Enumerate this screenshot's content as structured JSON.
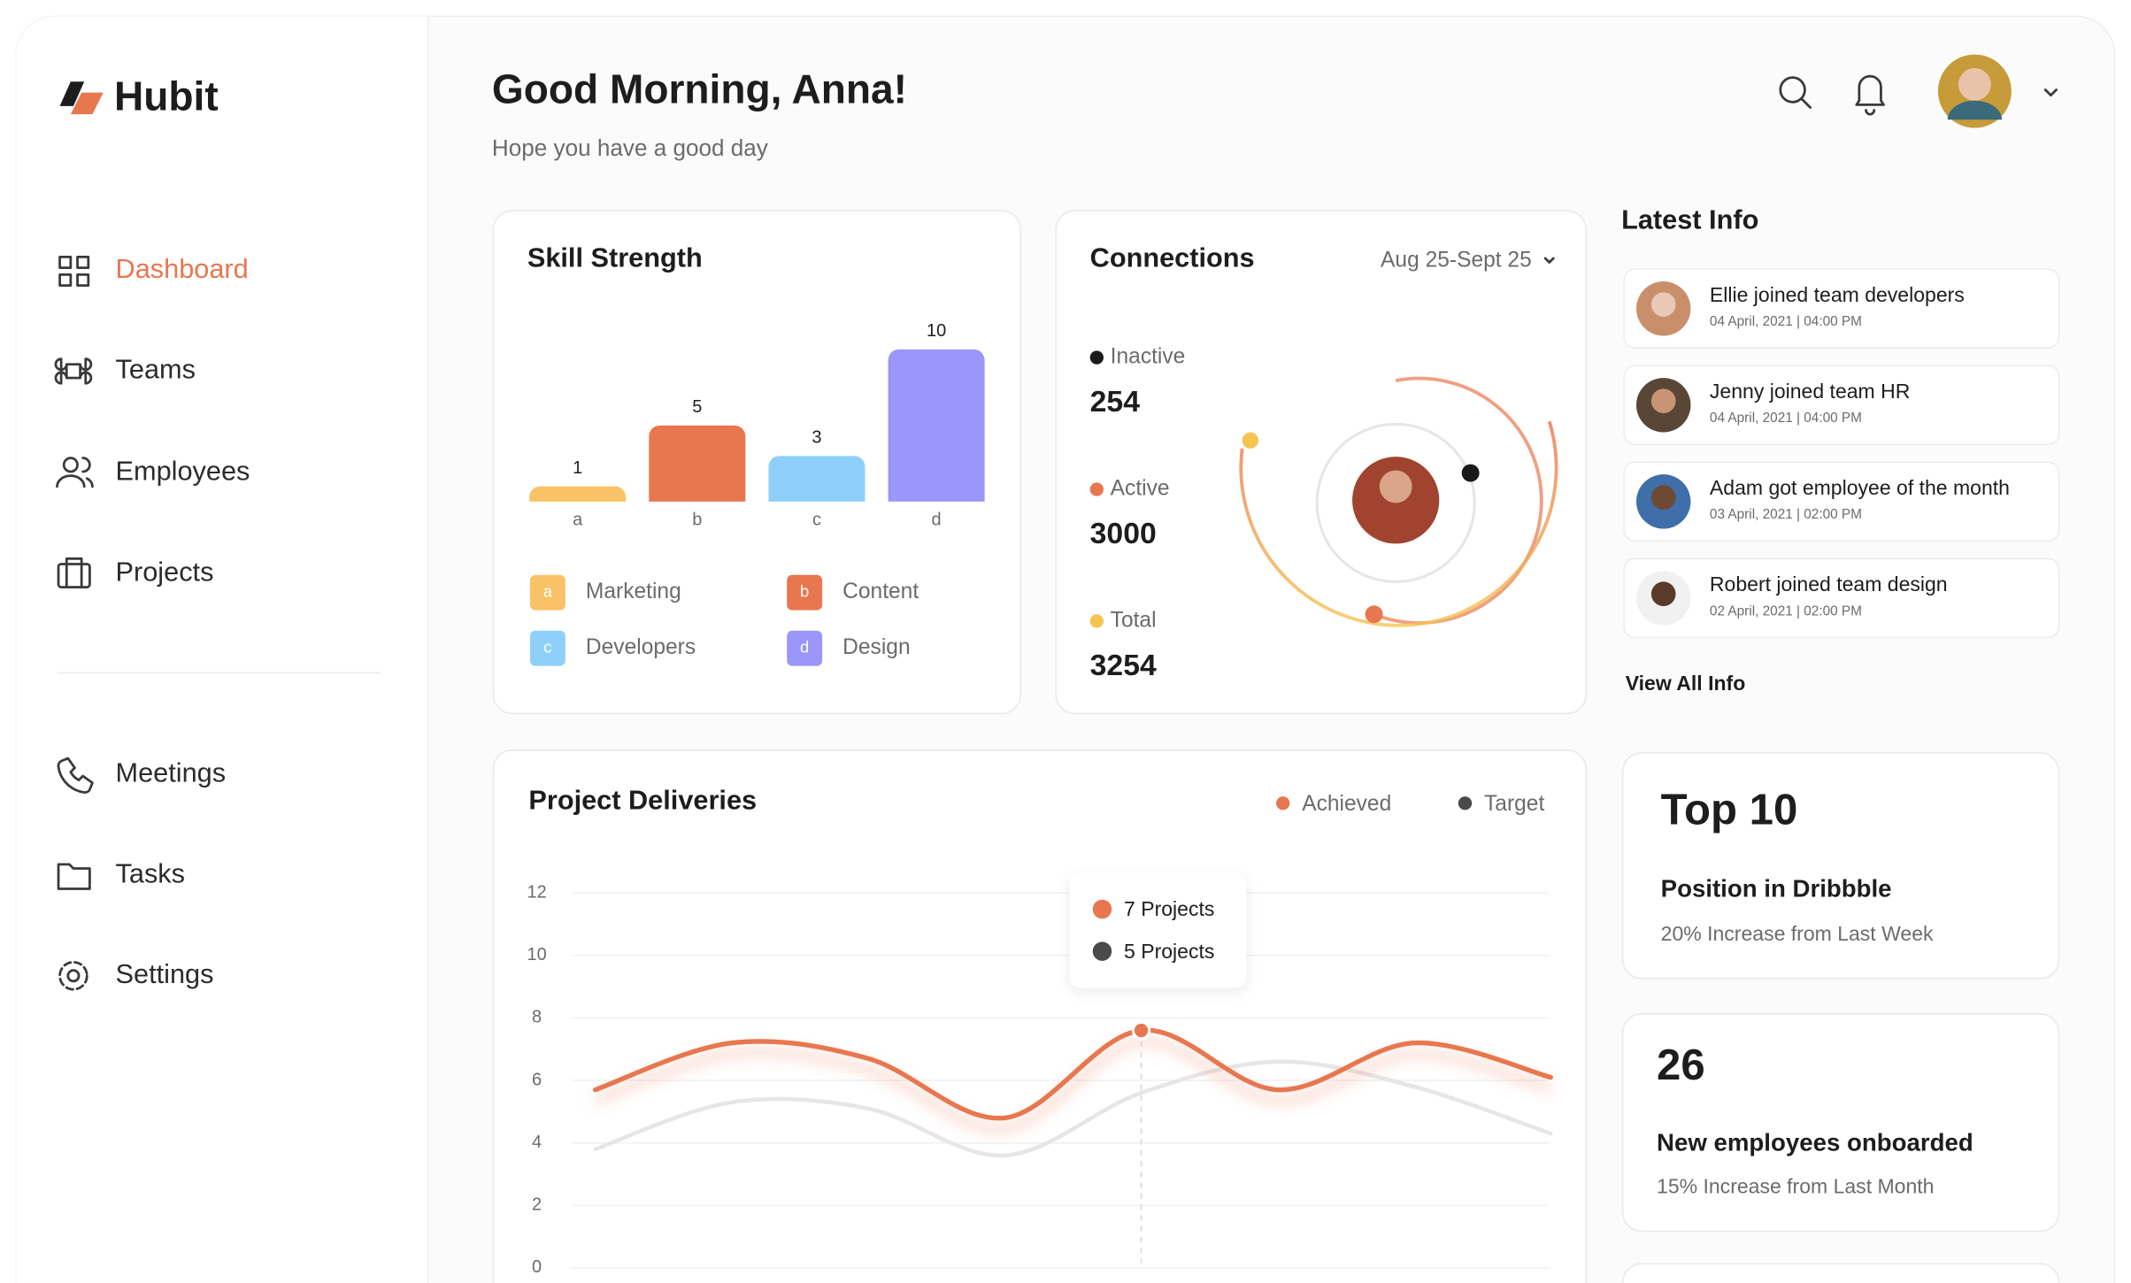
{
  "sidebar": {
    "brand": "Hubit",
    "nav": [
      "Dashboard",
      "Teams",
      "Employees",
      "Projects"
    ],
    "nav_secondary": [
      "Meetings",
      "Tasks",
      "Settings"
    ]
  },
  "header": {
    "title": "Good Morning, Anna!",
    "subtitle": "Hope you have a good day"
  },
  "chart_data": [
    {
      "type": "bar",
      "title": "Skill Strength",
      "categories": [
        "a",
        "b",
        "c",
        "d"
      ],
      "values": [
        1,
        5,
        3,
        10
      ],
      "colors": [
        "#fac266",
        "#e8774f",
        "#8fd0fa",
        "#9b96f9"
      ],
      "legend": [
        "Marketing",
        "Content",
        "Developers",
        "Design"
      ]
    },
    {
      "type": "line",
      "title": "Project Deliveries",
      "series": [
        {
          "name": "Achieved",
          "color": "#e8774f",
          "values": [
            5.7,
            7.2,
            6.7,
            4.8,
            7.6,
            5.7,
            7.2,
            6.1
          ]
        },
        {
          "name": "Target",
          "color": "#4a4a4a",
          "values": [
            3.8,
            5.3,
            5.1,
            3.6,
            5.6,
            6.6,
            5.8,
            4.3
          ]
        }
      ],
      "ylim": [
        0,
        12
      ],
      "yticks": [
        0,
        2,
        4,
        6,
        8,
        10,
        12
      ],
      "grid": true,
      "tooltip": [
        "7 Projects",
        "5 Projects"
      ]
    }
  ],
  "connections": {
    "title": "Connections",
    "date_range": "Aug 25-Sept 25",
    "stats": [
      {
        "label": "Inactive",
        "value": 254,
        "color": "#1a1a1a"
      },
      {
        "label": "Active",
        "value": 3000,
        "color": "#e8774f"
      },
      {
        "label": "Total",
        "value": 3254,
        "color": "#f6c453"
      }
    ]
  },
  "latest_info": {
    "title": "Latest Info",
    "items": [
      {
        "text": "Ellie joined team developers",
        "time": "04 April, 2021 | 04:00 PM"
      },
      {
        "text": "Jenny joined team HR",
        "time": "04 April, 2021 | 04:00 PM"
      },
      {
        "text": "Adam got employee of the month",
        "time": "03 April, 2021 | 02:00 PM"
      },
      {
        "text": "Robert joined team design",
        "time": "02 April, 2021 | 02:00 PM"
      }
    ],
    "link": "View All Info"
  },
  "highlights": [
    {
      "value": "Top 10",
      "label": "Position in Dribbble",
      "note": "20% Increase from Last Week"
    },
    {
      "value": 26,
      "label": "New employees onboarded",
      "note": "15% Increase from Last Month"
    }
  ]
}
